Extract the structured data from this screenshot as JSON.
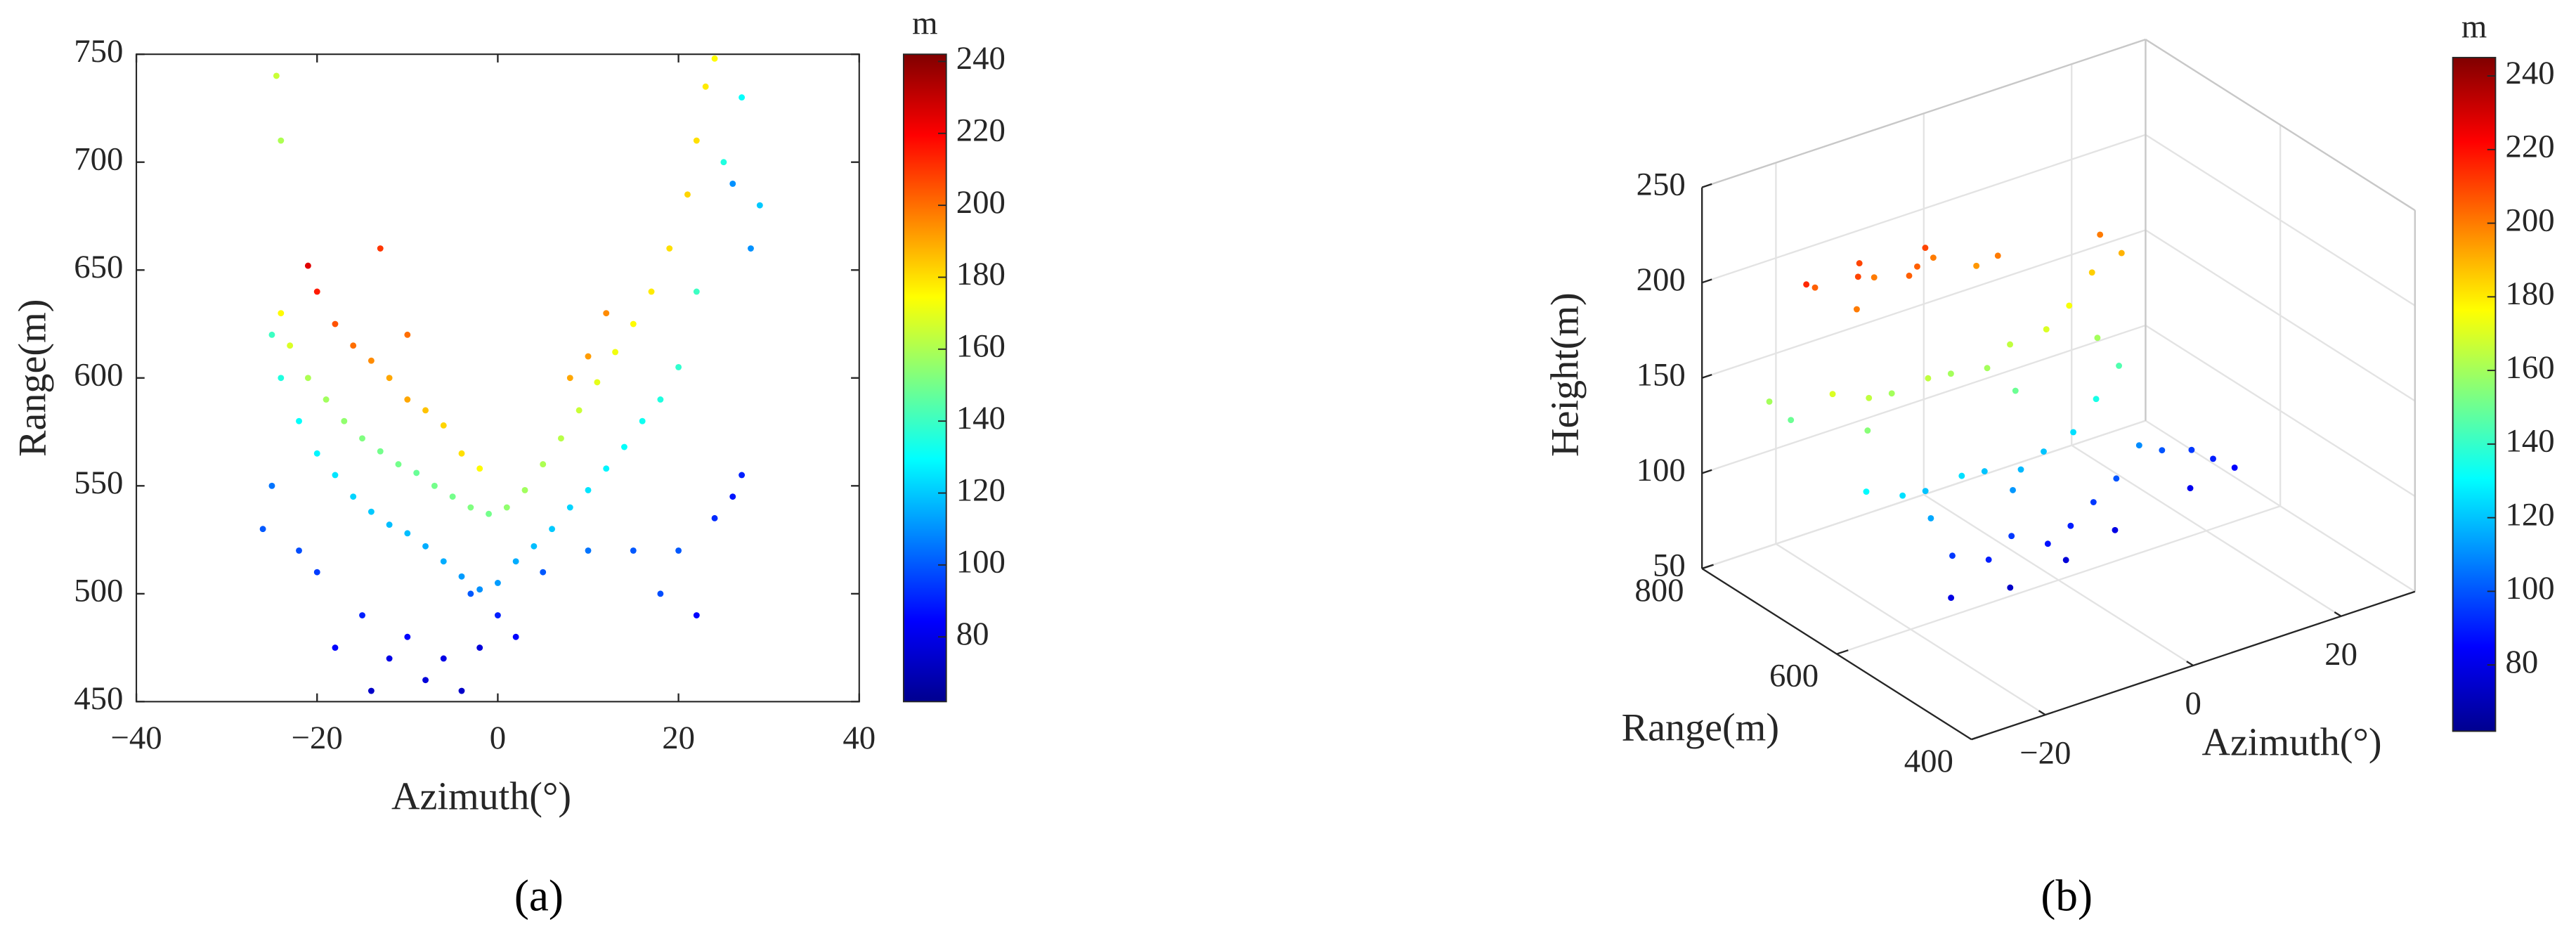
{
  "chart_data": [
    {
      "type": "scatter",
      "colormap": "jet",
      "xlabel": "Azimuth(°)",
      "ylabel": "Range(m)",
      "caption": "(a)",
      "xlim": [
        -40,
        40
      ],
      "xticks": [
        {
          "value": -40,
          "label": "−40"
        },
        {
          "value": -20,
          "label": "−20"
        },
        0,
        20,
        40
      ],
      "ylim": [
        450,
        750
      ],
      "yticks": [
        450,
        500,
        550,
        600,
        650,
        700,
        750
      ],
      "colorbar": {
        "label": "m",
        "lim": [
          62,
          242
        ],
        "ticks": [
          80,
          100,
          120,
          140,
          160,
          180,
          200,
          220,
          240
        ]
      },
      "x": [
        -20,
        -18,
        -16,
        -14,
        -12,
        -10,
        -8,
        -6,
        -4,
        -2,
        -21,
        -10,
        -13,
        -24,
        -23,
        -21,
        -19,
        -17,
        -15,
        -13,
        -11,
        -9,
        -7,
        -5,
        -3,
        -1,
        1,
        3,
        5,
        7,
        9,
        11,
        13,
        15,
        17,
        19,
        21,
        22,
        23,
        24,
        -24.5,
        -24,
        8,
        12,
        10,
        -25,
        -24,
        -22,
        -20,
        -18,
        -16,
        -14,
        -12,
        -10,
        -8,
        -6,
        -4,
        -2,
        0,
        2,
        4,
        6,
        8,
        10,
        12,
        14,
        16,
        18,
        20,
        22,
        25,
        27,
        -26,
        -25,
        -22,
        -20,
        -18,
        -15,
        -12,
        -10,
        -8,
        -6,
        -4,
        -2,
        0,
        2,
        -14,
        -3,
        5,
        10,
        15,
        18,
        20,
        24,
        26,
        27,
        22,
        28,
        29,
        26
      ],
      "y": [
        640,
        625,
        615,
        608,
        600,
        590,
        585,
        578,
        565,
        558,
        652,
        620,
        660,
        630,
        615,
        600,
        590,
        580,
        572,
        566,
        560,
        556,
        550,
        545,
        540,
        537,
        540,
        548,
        560,
        572,
        585,
        598,
        612,
        625,
        640,
        660,
        685,
        710,
        735,
        748,
        740,
        710,
        600,
        630,
        610,
        620,
        600,
        580,
        565,
        555,
        545,
        538,
        532,
        528,
        522,
        515,
        508,
        502,
        505,
        515,
        522,
        530,
        540,
        548,
        558,
        568,
        580,
        590,
        605,
        640,
        700,
        730,
        530,
        550,
        520,
        510,
        475,
        490,
        470,
        480,
        460,
        470,
        455,
        475,
        490,
        480,
        455,
        500,
        510,
        520,
        520,
        500,
        520,
        535,
        545,
        555,
        490,
        660,
        680,
        690
      ],
      "values": [
        215,
        205,
        200,
        195,
        190,
        190,
        185,
        182,
        180,
        175,
        225,
        200,
        210,
        175,
        168,
        160,
        158,
        155,
        152,
        150,
        150,
        148,
        150,
        150,
        152,
        150,
        155,
        158,
        160,
        162,
        165,
        170,
        172,
        175,
        178,
        180,
        182,
        180,
        178,
        175,
        165,
        160,
        190,
        195,
        192,
        140,
        135,
        130,
        128,
        125,
        122,
        120,
        118,
        118,
        115,
        115,
        112,
        110,
        112,
        115,
        118,
        120,
        122,
        125,
        128,
        130,
        132,
        135,
        138,
        140,
        135,
        130,
        100,
        105,
        98,
        95,
        85,
        90,
        80,
        85,
        78,
        80,
        75,
        78,
        90,
        85,
        75,
        100,
        100,
        105,
        100,
        98,
        100,
        92,
        88,
        90,
        85,
        110,
        120,
        110
      ]
    },
    {
      "type": "scatter3d",
      "colormap": "jet",
      "xlabel": "Azimuth(°)",
      "ylabel": "Range(m)",
      "zlabel": "Height(m)",
      "caption": "(b)",
      "xlim": [
        -30,
        30
      ],
      "xticks": [
        {
          "value": -20,
          "label": "−20"
        },
        0,
        20
      ],
      "ylim": [
        400,
        800
      ],
      "yticks": [
        400,
        600,
        800
      ],
      "zlim": [
        50,
        250
      ],
      "zticks": [
        50,
        100,
        150,
        200,
        250
      ],
      "colorbar": {
        "label": "m",
        "lim": [
          62,
          245
        ],
        "ticks": [
          80,
          100,
          120,
          140,
          160,
          180,
          200,
          220,
          240
        ]
      },
      "x": [
        -25,
        -22,
        -18,
        -14,
        -10,
        -6,
        -2,
        -20,
        -12,
        -8,
        0,
        -16,
        -26,
        -22,
        -18,
        -14,
        -10,
        -6,
        -2,
        2,
        6,
        10,
        12,
        -24,
        -4,
        8,
        14,
        -26,
        -22,
        -18,
        -14,
        -10,
        -6,
        -2,
        2,
        6,
        10,
        -20,
        -8,
        -18,
        -14,
        -10,
        -6,
        -2,
        2,
        6,
        10,
        14,
        18,
        20,
        22,
        -20,
        -12,
        -4,
        4,
        16,
        -30,
        -28
      ],
      "y": [
        700,
        720,
        700,
        720,
        700,
        720,
        700,
        680,
        690,
        710,
        690,
        720,
        650,
        640,
        650,
        640,
        650,
        640,
        650,
        640,
        650,
        660,
        670,
        620,
        620,
        630,
        660,
        600,
        590,
        600,
        590,
        600,
        590,
        600,
        600,
        610,
        620,
        570,
        580,
        560,
        550,
        560,
        550,
        560,
        570,
        580,
        590,
        600,
        600,
        590,
        580,
        540,
        540,
        545,
        560,
        580,
        700,
        690
      ],
      "z": [
        215,
        205,
        210,
        200,
        205,
        200,
        195,
        200,
        205,
        210,
        200,
        210,
        170,
        165,
        160,
        165,
        160,
        160,
        165,
        170,
        175,
        185,
        200,
        155,
        150,
        160,
        190,
        130,
        125,
        120,
        125,
        120,
        118,
        120,
        125,
        135,
        145,
        115,
        112,
        95,
        90,
        95,
        88,
        90,
        95,
        100,
        110,
        100,
        95,
        90,
        85,
        80,
        75,
        78,
        80,
        82,
        160,
        150
      ]
    }
  ]
}
